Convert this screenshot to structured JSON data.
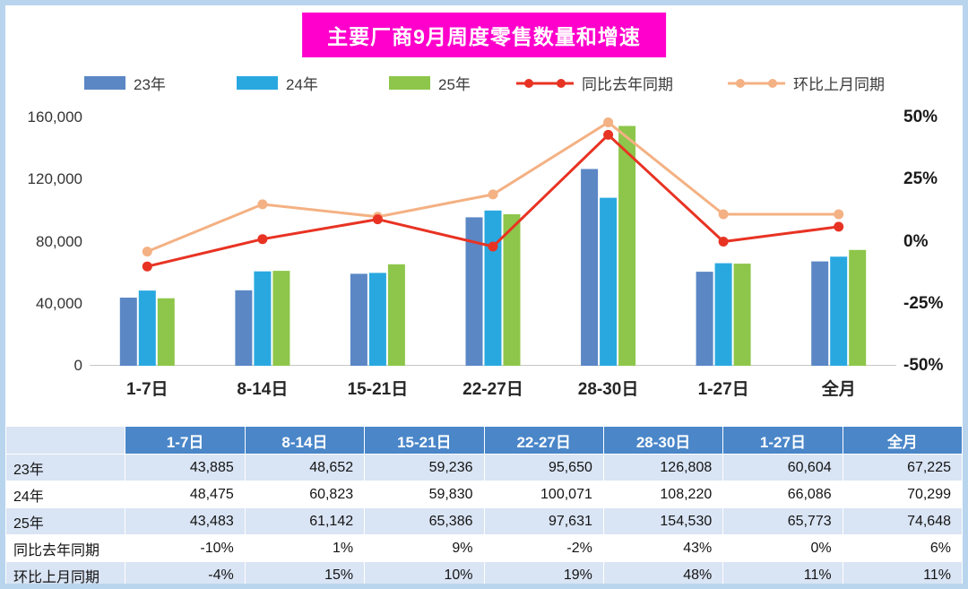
{
  "title": "主要厂商9月周度零售数量和增速",
  "chart_data": {
    "type": "bar+line combo",
    "title": "主要厂商9月周度零售数量和增速",
    "categories": [
      "1-7日",
      "8-14日",
      "15-21日",
      "22-27日",
      "28-30日",
      "1-27日",
      "全月"
    ],
    "bar_series": [
      {
        "name": "23年",
        "color": "#5B87C5",
        "values": [
          43885,
          48652,
          59236,
          95650,
          126808,
          60604,
          67225
        ]
      },
      {
        "name": "24年",
        "color": "#29A8E0",
        "values": [
          48475,
          60823,
          59830,
          100071,
          108220,
          66086,
          70299
        ]
      },
      {
        "name": "25年",
        "color": "#8DC64A",
        "values": [
          43483,
          61142,
          65386,
          97631,
          154530,
          65773,
          74648
        ]
      }
    ],
    "line_series": [
      {
        "name": "同比去年同期",
        "color": "#E83323",
        "values": [
          -10,
          1,
          9,
          -2,
          43,
          0,
          6
        ]
      },
      {
        "name": "环比上月同期",
        "color": "#F4B183",
        "values": [
          -4,
          15,
          10,
          19,
          48,
          11,
          11
        ]
      }
    ],
    "left_axis": {
      "min": 0,
      "max": 160000,
      "tick_labels": [
        "160,000",
        "120,000",
        "80,000",
        "40,000",
        "0"
      ]
    },
    "right_axis": {
      "min": -50,
      "max": 50,
      "tick_labels": [
        "50%",
        "25%",
        "0%",
        "-25%",
        "-50%"
      ]
    },
    "legend_position": "top",
    "grid": false
  },
  "table": {
    "corner_label": "",
    "columns": [
      "1-7日",
      "8-14日",
      "15-21日",
      "22-27日",
      "28-30日",
      "1-27日",
      "全月"
    ],
    "rows": [
      {
        "label": "23年",
        "values": [
          "43,885",
          "48,652",
          "59,236",
          "95,650",
          "126,808",
          "60,604",
          "67,225"
        ]
      },
      {
        "label": "24年",
        "values": [
          "48,475",
          "60,823",
          "59,830",
          "100,071",
          "108,220",
          "66,086",
          "70,299"
        ]
      },
      {
        "label": "25年",
        "values": [
          "43,483",
          "61,142",
          "65,386",
          "97,631",
          "154,530",
          "65,773",
          "74,648"
        ]
      },
      {
        "label": "同比去年同期",
        "values": [
          "-10%",
          "1%",
          "9%",
          "-2%",
          "43%",
          "0%",
          "6%"
        ]
      },
      {
        "label": "环比上月同期",
        "values": [
          "-4%",
          "15%",
          "10%",
          "19%",
          "48%",
          "11%",
          "11%"
        ]
      }
    ]
  },
  "colors": {
    "title_bg": "#FF00CC",
    "title_text": "#FFFFFF",
    "page_border": "#B9D5EE",
    "table_header_bg": "#4A86C8",
    "table_header_text": "#FFFFFF",
    "table_row_alt_bg": "#D9E4F4",
    "axis_line": "#C6C6C6"
  }
}
